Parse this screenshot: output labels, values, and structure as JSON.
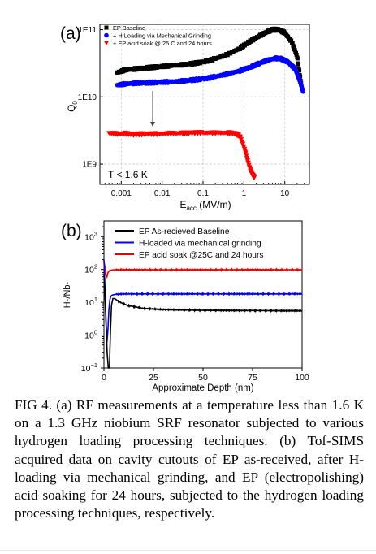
{
  "figure": {
    "caption": "FIG 4. (a) RF measurements at a temperature less than 1.6 K on a 1.3 GHz niobium SRF resonator subjected to various hydrogen loading processing techniques. (b) Tof-SIMS acquired data on cavity cutouts of EP as-received, after H-loading via mechanical grinding, and EP (electropolishing) acid soaking for 24 hours, subjected to the hydrogen loading processing techniques, respectively."
  },
  "chart_data": [
    {
      "panel_label": "(a)",
      "type": "scatter",
      "xlabel_main": "E",
      "xlabel_sub": "acc",
      "xlabel_unit": " (MV/m)",
      "ylabel_main": "Q",
      "ylabel_sub": "0",
      "xscale": "log",
      "yscale": "log",
      "xlim": [
        0.0003,
        40
      ],
      "ylim": [
        500000000.0,
        120000000000.0
      ],
      "xticks": [
        0.001,
        0.01,
        0.1,
        1,
        10
      ],
      "xticklabels": [
        "0.001",
        "0.01",
        "0.1",
        "1",
        "10"
      ],
      "yticks": [
        1000000000.0,
        10000000000.0,
        100000000000.0
      ],
      "yticklabels": [
        "1E9",
        "1E10",
        "1E11"
      ],
      "annotation": "T < 1.6 K",
      "legend_position": "top-left",
      "series": [
        {
          "name": "EP Baseline",
          "color": "#000000",
          "marker": "square",
          "x": [
            0.0008,
            0.0012,
            0.002,
            0.004,
            0.008,
            0.015,
            0.03,
            0.05,
            0.1,
            0.2,
            0.4,
            0.8,
            1.2,
            2,
            3,
            4,
            5,
            7,
            10,
            15,
            20,
            25
          ],
          "y": [
            23000000000.0,
            25000000000.0,
            26000000000.0,
            27000000000.0,
            28000000000.0,
            29000000000.0,
            30000000000.0,
            31000000000.0,
            33000000000.0,
            37000000000.0,
            43000000000.0,
            53000000000.0,
            63000000000.0,
            76000000000.0,
            87000000000.0,
            95000000000.0,
            100000000000.0,
            100000000000.0,
            90000000000.0,
            65000000000.0,
            40000000000.0,
            16000000000.0
          ]
        },
        {
          "name": "H Loading via Mechanical Grinding",
          "color": "#0000ff",
          "marker": "circle",
          "x": [
            0.0008,
            0.0012,
            0.002,
            0.004,
            0.008,
            0.015,
            0.03,
            0.05,
            0.1,
            0.2,
            0.4,
            0.8,
            1.5,
            2.5,
            4,
            6,
            8,
            12,
            18,
            23,
            28
          ],
          "y": [
            15000000000.0,
            15500000000.0,
            16000000000.0,
            16200000000.0,
            16500000000.0,
            16800000000.0,
            17200000000.0,
            17700000000.0,
            18500000000.0,
            20000000000.0,
            22000000000.0,
            24500000000.0,
            28000000000.0,
            32000000000.0,
            35500000000.0,
            37500000000.0,
            37000000000.0,
            33000000000.0,
            26000000000.0,
            18000000000.0,
            12000000000.0
          ]
        },
        {
          "name": "EP acid soak @ 25 C and 24 hours",
          "color": "#ff0000",
          "marker": "triangle-down",
          "x": [
            0.0005,
            0.0008,
            0.0012,
            0.002,
            0.004,
            0.008,
            0.015,
            0.03,
            0.05,
            0.1,
            0.2,
            0.4,
            0.6,
            0.8,
            1.0,
            1.2,
            1.4,
            1.6,
            1.8
          ],
          "y": [
            2900000000.0,
            2800000000.0,
            2850000000.0,
            2750000000.0,
            2800000000.0,
            2800000000.0,
            2850000000.0,
            2850000000.0,
            2900000000.0,
            2900000000.0,
            2900000000.0,
            2900000000.0,
            2850000000.0,
            2600000000.0,
            1800000000.0,
            1200000000.0,
            850000000.0,
            700000000.0,
            630000000.0
          ]
        }
      ]
    },
    {
      "panel_label": "(b)",
      "type": "line",
      "xlabel": "Approximate Depth (nm)",
      "ylabel": "H-/Nb-",
      "yscale": "log",
      "xlim": [
        0,
        100
      ],
      "ylim": [
        0.1,
        3000
      ],
      "xticks": [
        0,
        25,
        50,
        75,
        100
      ],
      "xticklabels": [
        "0",
        "25",
        "50",
        "75",
        "100"
      ],
      "yticks": [
        0.1,
        1,
        10,
        100,
        1000
      ],
      "ytick_mantissa": "10",
      "ytick_exponents": [
        "−1",
        "0",
        "1",
        "2",
        "3"
      ],
      "legend_position": "top-right",
      "series": [
        {
          "name": "EP As-recieved Baseline",
          "color": "#000000",
          "x": [
            0,
            0.5,
            1,
            1.6,
            2.2,
            2.8,
            3.3,
            3.8,
            4.5,
            5.5,
            7,
            9,
            12,
            16,
            20,
            30,
            50,
            75,
            100
          ],
          "y": [
            70,
            20,
            3,
            0.3,
            0.1,
            0.1,
            1.5,
            8,
            13,
            13,
            11,
            9.5,
            8,
            7.2,
            6.5,
            6,
            5.7,
            5.6,
            5.5
          ]
        },
        {
          "name": "H-loaded via mechanical grinding",
          "color": "#0000ff",
          "x": [
            0,
            0.5,
            1,
            1.5,
            2,
            2.5,
            3,
            3.5,
            4,
            6,
            10,
            20,
            50,
            75,
            100
          ],
          "y": [
            200,
            30,
            3,
            0.6,
            1.5,
            6,
            12,
            15,
            16.5,
            17.5,
            18,
            18,
            18,
            18,
            18
          ]
        },
        {
          "name": "EP acid soak @25C and 24 hours",
          "color": "#ee0000",
          "x": [
            0,
            0.5,
            1,
            1.5,
            2,
            3,
            5,
            10,
            25,
            50,
            75,
            100
          ],
          "y": [
            180,
            120,
            70,
            60,
            80,
            95,
            98,
            98,
            98,
            98,
            98,
            98
          ]
        }
      ]
    }
  ]
}
